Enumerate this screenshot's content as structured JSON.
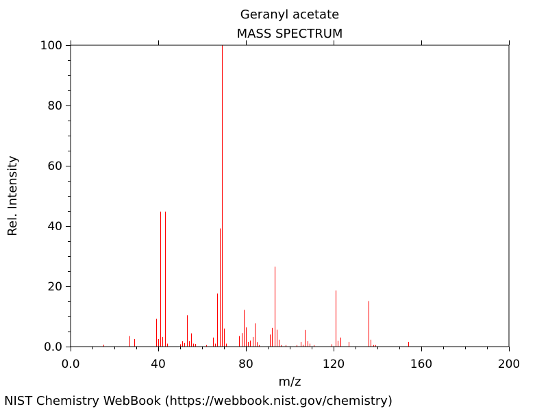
{
  "chart_data": {
    "type": "bar",
    "subtype": "mass-spectrum-sticks",
    "title": "Geranyl acetate",
    "subtitle": "MASS SPECTRUM",
    "xlabel": "m/z",
    "ylabel": "Rel. Intensity",
    "xlim": [
      0,
      200
    ],
    "ylim": [
      0,
      100
    ],
    "xticks": [
      0,
      40,
      80,
      120,
      160,
      200
    ],
    "xtick_labels": [
      "0.0",
      "40",
      "80",
      "120",
      "160",
      "200"
    ],
    "yticks": [
      0,
      20,
      40,
      60,
      80,
      100
    ],
    "ytick_labels": [
      "0.0",
      "20",
      "40",
      "60",
      "80",
      "100"
    ],
    "series": [
      {
        "name": "Geranyl acetate",
        "color": "#ff0000",
        "x": [
          15,
          27,
          29,
          39,
          40,
          41,
          42,
          43,
          44,
          50,
          51,
          52,
          53,
          54,
          55,
          56,
          57,
          62,
          65,
          66,
          67,
          68,
          69,
          70,
          71,
          77,
          78,
          79,
          80,
          81,
          82,
          83,
          84,
          85,
          86,
          91,
          92,
          93,
          94,
          95,
          96,
          98,
          103,
          105,
          106,
          107,
          108,
          109,
          111,
          119,
          121,
          122,
          123,
          127,
          136,
          137,
          138,
          139,
          154
        ],
        "y": [
          0.6,
          3.5,
          2.5,
          9.2,
          2.5,
          44.8,
          3.2,
          44.8,
          1.0,
          0.8,
          1.8,
          1.2,
          10.4,
          1.8,
          4.4,
          1.0,
          0.9,
          0.5,
          3.0,
          1.0,
          17.6,
          39.2,
          100,
          6.0,
          1.0,
          3.5,
          4.5,
          12.2,
          6.4,
          1.6,
          2.0,
          3.2,
          7.7,
          1.5,
          0.5,
          4.0,
          6.2,
          26.5,
          5.6,
          2.3,
          0.5,
          0.5,
          0.5,
          1.6,
          0.6,
          5.5,
          1.8,
          1.0,
          0.5,
          0.8,
          18.6,
          1.9,
          3.0,
          1.6,
          15.1,
          2.3,
          0.5,
          0.5,
          1.6
        ]
      }
    ]
  },
  "footer": {
    "credit": "NIST Chemistry WebBook (https://webbook.nist.gov/chemistry)"
  }
}
